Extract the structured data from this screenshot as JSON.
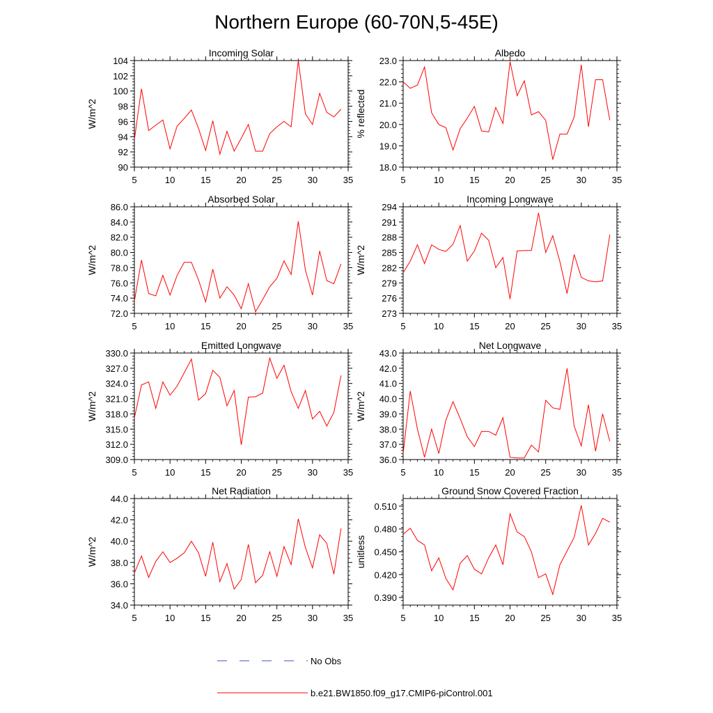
{
  "figure": {
    "title": "Northern Europe (60-70N,5-45E)",
    "line_color": "#ff0000",
    "obs_color": "#3b4fc8"
  },
  "legend": [
    {
      "label": "No Obs",
      "style": "dashed",
      "color": "#3b4fc8"
    },
    {
      "label": "b.e21.BW1850.f09_g17.CMIP6-piControl.001",
      "style": "solid",
      "color": "#ff0000"
    }
  ],
  "chart_data": [
    {
      "type": "line",
      "title": "Incoming Solar",
      "ylabel": "W/m^2",
      "xlim": [
        5,
        35
      ],
      "ylim": [
        90,
        104
      ],
      "xticks": [
        5,
        10,
        15,
        20,
        25,
        30,
        35
      ],
      "yticks": [
        90,
        92,
        94,
        96,
        98,
        100,
        102,
        104
      ],
      "ytick_labels": [
        "90",
        "92",
        "94",
        "96",
        "98",
        "100",
        "102",
        "104"
      ],
      "x": [
        5,
        6,
        7,
        8,
        9,
        10,
        11,
        12,
        13,
        14,
        15,
        16,
        17,
        18,
        19,
        20,
        21,
        22,
        23,
        24,
        25,
        26,
        27,
        28,
        29,
        30,
        31,
        32,
        33,
        34
      ],
      "series": [
        {
          "name": "b.e21.BW1850.f09_g17.CMIP6-piControl.001",
          "values": [
            93.6,
            100.3,
            94.8,
            95.5,
            96.2,
            92.4,
            95.4,
            96.4,
            97.5,
            95.1,
            92.2,
            96.1,
            91.7,
            94.7,
            92.1,
            93.8,
            95.6,
            92.1,
            92.1,
            94.4,
            95.3,
            96.0,
            95.3,
            104.0,
            97.0,
            95.6,
            99.7,
            97.2,
            96.6,
            97.6
          ]
        }
      ]
    },
    {
      "type": "line",
      "title": "Albedo",
      "ylabel": "% reflected",
      "xlim": [
        5,
        35
      ],
      "ylim": [
        18,
        23
      ],
      "xticks": [
        5,
        10,
        15,
        20,
        25,
        30,
        35
      ],
      "yticks": [
        18,
        19,
        20,
        21,
        22,
        23
      ],
      "ytick_labels": [
        "18.0",
        "19.0",
        "20.0",
        "21.0",
        "22.0",
        "23.0"
      ],
      "x": [
        5,
        6,
        7,
        8,
        9,
        10,
        11,
        12,
        13,
        14,
        15,
        16,
        17,
        18,
        19,
        20,
        21,
        22,
        23,
        24,
        25,
        26,
        27,
        28,
        29,
        30,
        31,
        32,
        33,
        34
      ],
      "series": [
        {
          "name": "b.e21.BW1850.f09_g17.CMIP6-piControl.001",
          "values": [
            22.0,
            21.7,
            21.85,
            22.7,
            20.55,
            20.0,
            19.85,
            18.8,
            19.8,
            20.3,
            20.85,
            19.7,
            19.65,
            20.8,
            20.05,
            22.95,
            21.35,
            22.05,
            20.45,
            20.6,
            20.2,
            18.35,
            19.55,
            19.55,
            20.35,
            22.8,
            19.9,
            22.1,
            22.1,
            20.2
          ]
        }
      ]
    },
    {
      "type": "line",
      "title": "Absorbed Solar",
      "ylabel": "W/m^2",
      "xlim": [
        5,
        35
      ],
      "ylim": [
        72,
        86
      ],
      "xticks": [
        5,
        10,
        15,
        20,
        25,
        30,
        35
      ],
      "yticks": [
        72,
        74,
        76,
        78,
        80,
        82,
        84,
        86
      ],
      "ytick_labels": [
        "72.0",
        "74.0",
        "76.0",
        "78.0",
        "80.0",
        "82.0",
        "84.0",
        "86.0"
      ],
      "x": [
        5,
        6,
        7,
        8,
        9,
        10,
        11,
        12,
        13,
        14,
        15,
        16,
        17,
        18,
        19,
        20,
        21,
        22,
        23,
        24,
        25,
        26,
        27,
        28,
        29,
        30,
        31,
        32,
        33,
        34
      ],
      "series": [
        {
          "name": "b.e21.BW1850.f09_g17.CMIP6-piControl.001",
          "values": [
            73.6,
            79.0,
            74.6,
            74.3,
            77.0,
            74.4,
            77.0,
            78.7,
            78.7,
            76.4,
            73.5,
            77.8,
            74.0,
            75.5,
            74.4,
            72.6,
            75.9,
            72.2,
            73.8,
            75.5,
            76.6,
            78.9,
            77.1,
            84.1,
            77.7,
            74.4,
            80.2,
            76.3,
            75.9,
            78.5
          ]
        }
      ]
    },
    {
      "type": "line",
      "title": "Incoming Longwave",
      "ylabel": "W/m^2",
      "xlim": [
        5,
        35
      ],
      "ylim": [
        273,
        294
      ],
      "xticks": [
        5,
        10,
        15,
        20,
        25,
        30,
        35
      ],
      "yticks": [
        273,
        276,
        279,
        282,
        285,
        288,
        291,
        294
      ],
      "ytick_labels": [
        "273",
        "276",
        "279",
        "282",
        "285",
        "288",
        "291",
        "294"
      ],
      "x": [
        5,
        6,
        7,
        8,
        9,
        10,
        11,
        12,
        13,
        14,
        15,
        16,
        17,
        18,
        19,
        20,
        21,
        22,
        23,
        24,
        25,
        26,
        27,
        28,
        29,
        30,
        31,
        32,
        33,
        34
      ],
      "series": [
        {
          "name": "b.e21.BW1850.f09_g17.CMIP6-piControl.001",
          "values": [
            281.0,
            283.3,
            286.5,
            282.8,
            286.5,
            285.6,
            285.2,
            286.6,
            290.3,
            283.3,
            285.3,
            288.8,
            287.4,
            282.0,
            284.0,
            275.8,
            285.3,
            285.4,
            285.4,
            292.8,
            285.0,
            288.3,
            283.2,
            276.9,
            284.6,
            280.1,
            279.4,
            279.2,
            279.4,
            288.5
          ]
        }
      ]
    },
    {
      "type": "line",
      "title": "Emitted Longwave",
      "ylabel": "W/m^2",
      "xlim": [
        5,
        35
      ],
      "ylim": [
        309,
        330
      ],
      "xticks": [
        5,
        10,
        15,
        20,
        25,
        30,
        35
      ],
      "yticks": [
        309,
        312,
        315,
        318,
        321,
        324,
        327,
        330
      ],
      "ytick_labels": [
        "309.0",
        "312.0",
        "315.0",
        "318.0",
        "321.0",
        "324.0",
        "327.0",
        "330.0"
      ],
      "x": [
        5,
        6,
        7,
        8,
        9,
        10,
        11,
        12,
        13,
        14,
        15,
        16,
        17,
        18,
        19,
        20,
        21,
        22,
        23,
        24,
        25,
        26,
        27,
        28,
        29,
        30,
        31,
        32,
        33,
        34
      ],
      "series": [
        {
          "name": "b.e21.BW1850.f09_g17.CMIP6-piControl.001",
          "values": [
            317.2,
            323.7,
            324.3,
            319.1,
            324.3,
            321.7,
            323.5,
            326.1,
            328.8,
            320.7,
            322.0,
            326.6,
            325.2,
            319.6,
            322.6,
            311.9,
            321.3,
            321.4,
            322.1,
            329.0,
            325.0,
            327.6,
            322.4,
            319.1,
            322.6,
            317.0,
            318.5,
            315.6,
            318.3,
            325.6
          ]
        }
      ]
    },
    {
      "type": "line",
      "title": "Net Longwave",
      "ylabel": "W/m^2",
      "xlim": [
        5,
        35
      ],
      "ylim": [
        36,
        43
      ],
      "xticks": [
        5,
        10,
        15,
        20,
        25,
        30,
        35
      ],
      "yticks": [
        36,
        37,
        38,
        39,
        40,
        41,
        42,
        43
      ],
      "ytick_labels": [
        "36.0",
        "37.0",
        "38.0",
        "39.0",
        "40.0",
        "41.0",
        "42.0",
        "43.0"
      ],
      "x": [
        5,
        6,
        7,
        8,
        9,
        10,
        11,
        12,
        13,
        14,
        15,
        16,
        17,
        18,
        19,
        20,
        21,
        22,
        23,
        24,
        25,
        26,
        27,
        28,
        29,
        30,
        31,
        32,
        33,
        34
      ],
      "series": [
        {
          "name": "b.e21.BW1850.f09_g17.CMIP6-piControl.001",
          "values": [
            36.4,
            40.5,
            38.0,
            36.15,
            38.0,
            36.4,
            38.6,
            39.8,
            38.7,
            37.5,
            36.85,
            37.85,
            37.85,
            37.6,
            38.75,
            36.15,
            36.1,
            36.1,
            36.95,
            36.5,
            39.9,
            39.4,
            39.3,
            42.0,
            38.2,
            36.9,
            39.6,
            36.55,
            39.0,
            37.2
          ]
        }
      ]
    },
    {
      "type": "line",
      "title": "Net Radiation",
      "ylabel": "W/m^2",
      "xlim": [
        5,
        35
      ],
      "ylim": [
        34,
        44
      ],
      "xticks": [
        5,
        10,
        15,
        20,
        25,
        30,
        35
      ],
      "yticks": [
        34,
        36,
        38,
        40,
        42,
        44
      ],
      "ytick_labels": [
        "34.0",
        "36.0",
        "38.0",
        "40.0",
        "42.0",
        "44.0"
      ],
      "x": [
        5,
        6,
        7,
        8,
        9,
        10,
        11,
        12,
        13,
        14,
        15,
        16,
        17,
        18,
        19,
        20,
        21,
        22,
        23,
        24,
        25,
        26,
        27,
        28,
        29,
        30,
        31,
        32,
        33,
        34
      ],
      "series": [
        {
          "name": "b.e21.BW1850.f09_g17.CMIP6-piControl.001",
          "values": [
            37.0,
            38.6,
            36.6,
            38.1,
            39.0,
            38.0,
            38.4,
            38.9,
            40.0,
            38.9,
            36.7,
            39.9,
            36.2,
            37.9,
            35.5,
            36.4,
            39.7,
            36.1,
            36.8,
            39.0,
            36.7,
            39.5,
            37.8,
            42.1,
            39.4,
            37.5,
            40.6,
            39.8,
            36.9,
            41.2
          ]
        }
      ]
    },
    {
      "type": "line",
      "title": "Ground Snow Covered Fraction",
      "ylabel": "unitless",
      "xlim": [
        5,
        35
      ],
      "ylim": [
        0.38,
        0.52
      ],
      "xticks": [
        5,
        10,
        15,
        20,
        25,
        30,
        35
      ],
      "yticks": [
        0.39,
        0.42,
        0.45,
        0.48,
        0.51
      ],
      "ytick_labels": [
        "0.390",
        "0.420",
        "0.450",
        "0.480",
        "0.510"
      ],
      "x": [
        5,
        6,
        7,
        8,
        9,
        10,
        11,
        12,
        13,
        14,
        15,
        16,
        17,
        18,
        19,
        20,
        21,
        22,
        23,
        24,
        25,
        26,
        27,
        28,
        29,
        30,
        31,
        32,
        33,
        34
      ],
      "series": [
        {
          "name": "b.e21.BW1850.f09_g17.CMIP6-piControl.001",
          "values": [
            0.473,
            0.481,
            0.465,
            0.459,
            0.425,
            0.442,
            0.415,
            0.4,
            0.435,
            0.445,
            0.427,
            0.421,
            0.442,
            0.459,
            0.433,
            0.5,
            0.476,
            0.47,
            0.45,
            0.416,
            0.421,
            0.394,
            0.433,
            0.451,
            0.469,
            0.511,
            0.459,
            0.474,
            0.494,
            0.489
          ]
        }
      ]
    }
  ]
}
